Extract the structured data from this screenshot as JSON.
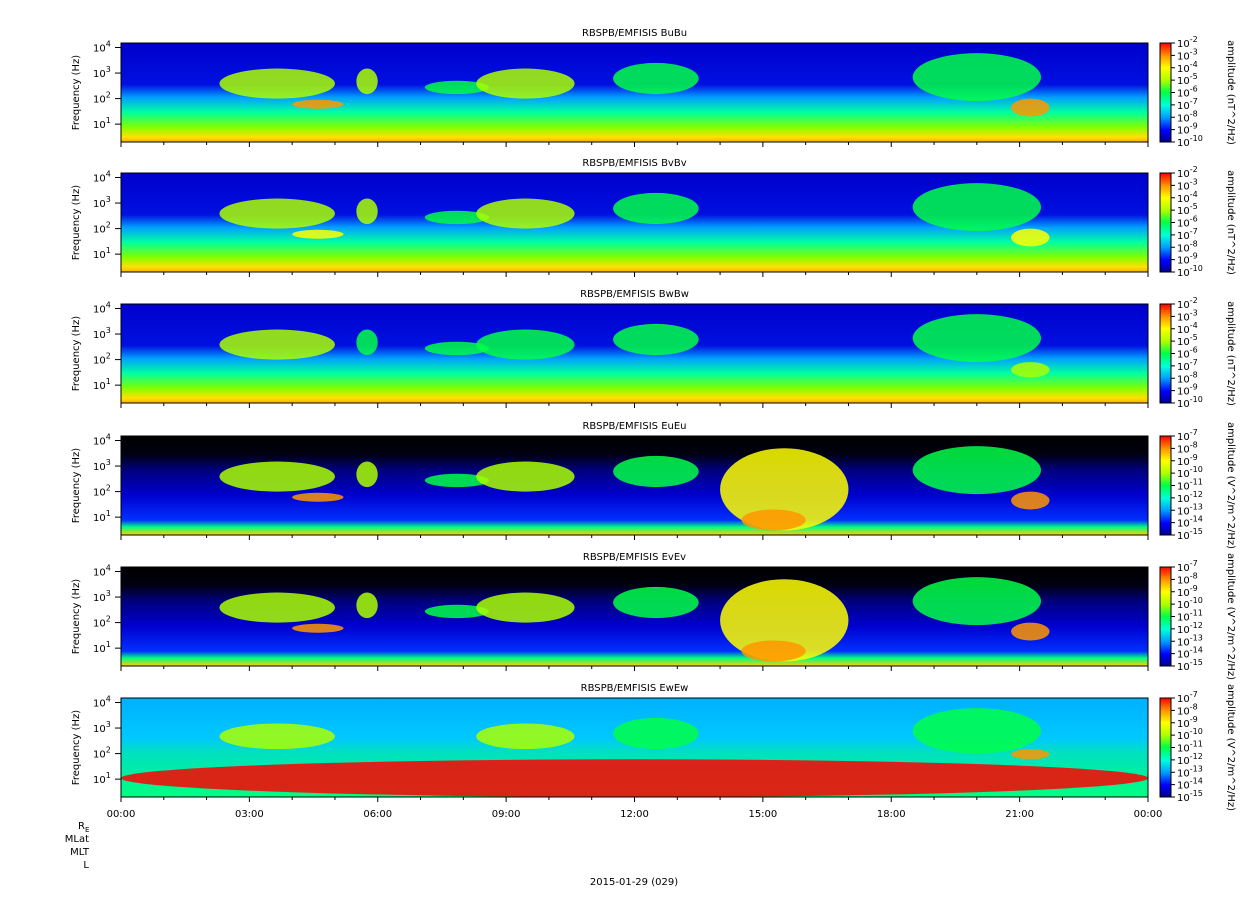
{
  "chart_data": [
    {
      "type": "heatmap",
      "title": "RBSPB/EMFISIS  BuBu",
      "ylabel": "Frequency (Hz)",
      "ylog": true,
      "ylim": [
        2,
        15000
      ],
      "yticks": [
        {
          "value": 10,
          "label": "10",
          "exp": "1"
        },
        {
          "value": 100,
          "label": "10",
          "exp": "2"
        },
        {
          "value": 1000,
          "label": "10",
          "exp": "3"
        },
        {
          "value": 10000,
          "label": "10",
          "exp": "4"
        }
      ],
      "colorbar": {
        "label": "amplitude (nT^2/Hz)",
        "exponents": [
          "-2",
          "-3",
          "-4",
          "-5",
          "-6",
          "-7",
          "-8",
          "-9",
          "-10"
        ],
        "range": [
          -10,
          -2
        ]
      },
      "features": [
        {
          "t": [
            2.3,
            5.0
          ],
          "f": [
            100,
            1500
          ],
          "level": 0.62
        },
        {
          "t": [
            4.0,
            5.2
          ],
          "f": [
            40,
            90
          ],
          "level": 0.82
        },
        {
          "t": [
            5.5,
            6.0
          ],
          "f": [
            150,
            1500
          ],
          "level": 0.6
        },
        {
          "t": [
            7.1,
            8.6
          ],
          "f": [
            150,
            500
          ],
          "level": 0.55
        },
        {
          "t": [
            8.3,
            10.6
          ],
          "f": [
            100,
            1500
          ],
          "level": 0.58
        },
        {
          "t": [
            11.5,
            13.5
          ],
          "f": [
            150,
            2500
          ],
          "level": 0.55
        },
        {
          "t": [
            18.5,
            21.5
          ],
          "f": [
            80,
            6000
          ],
          "level": 0.5
        },
        {
          "t": [
            20.8,
            21.7
          ],
          "f": [
            20,
            100
          ],
          "level": 0.85
        }
      ]
    },
    {
      "type": "heatmap",
      "title": "RBSPB/EMFISIS  BvBv",
      "ylabel": "Frequency (Hz)",
      "ylog": true,
      "ylim": [
        2,
        15000
      ],
      "yticks": [
        {
          "value": 10,
          "label": "10",
          "exp": "1"
        },
        {
          "value": 100,
          "label": "10",
          "exp": "2"
        },
        {
          "value": 1000,
          "label": "10",
          "exp": "3"
        },
        {
          "value": 10000,
          "label": "10",
          "exp": "4"
        }
      ],
      "colorbar": {
        "label": "amplitude (nT^2/Hz)",
        "exponents": [
          "-2",
          "-3",
          "-4",
          "-5",
          "-6",
          "-7",
          "-8",
          "-9",
          "-10"
        ],
        "range": [
          -10,
          -2
        ]
      },
      "features": [
        {
          "t": [
            2.3,
            5.0
          ],
          "f": [
            100,
            1500
          ],
          "level": 0.62
        },
        {
          "t": [
            4.0,
            5.2
          ],
          "f": [
            40,
            90
          ],
          "level": 0.75
        },
        {
          "t": [
            5.5,
            6.0
          ],
          "f": [
            150,
            1500
          ],
          "level": 0.6
        },
        {
          "t": [
            7.1,
            8.6
          ],
          "f": [
            150,
            500
          ],
          "level": 0.55
        },
        {
          "t": [
            8.3,
            10.6
          ],
          "f": [
            100,
            1500
          ],
          "level": 0.58
        },
        {
          "t": [
            11.5,
            13.5
          ],
          "f": [
            150,
            2500
          ],
          "level": 0.55
        },
        {
          "t": [
            18.5,
            21.5
          ],
          "f": [
            80,
            6000
          ],
          "level": 0.5
        },
        {
          "t": [
            20.8,
            21.7
          ],
          "f": [
            20,
            100
          ],
          "level": 0.8
        }
      ]
    },
    {
      "type": "heatmap",
      "title": "RBSPB/EMFISIS  BwBw",
      "ylabel": "Frequency (Hz)",
      "ylog": true,
      "ylim": [
        2,
        15000
      ],
      "yticks": [
        {
          "value": 10,
          "label": "10",
          "exp": "1"
        },
        {
          "value": 100,
          "label": "10",
          "exp": "2"
        },
        {
          "value": 1000,
          "label": "10",
          "exp": "3"
        },
        {
          "value": 10000,
          "label": "10",
          "exp": "4"
        }
      ],
      "colorbar": {
        "label": "amplitude (nT^2/Hz)",
        "exponents": [
          "-2",
          "-3",
          "-4",
          "-5",
          "-6",
          "-7",
          "-8",
          "-9",
          "-10"
        ],
        "range": [
          -10,
          -2
        ]
      },
      "features": [
        {
          "t": [
            2.3,
            5.0
          ],
          "f": [
            100,
            1500
          ],
          "level": 0.6
        },
        {
          "t": [
            5.5,
            6.0
          ],
          "f": [
            150,
            1500
          ],
          "level": 0.55
        },
        {
          "t": [
            7.1,
            8.6
          ],
          "f": [
            150,
            500
          ],
          "level": 0.52
        },
        {
          "t": [
            8.3,
            10.6
          ],
          "f": [
            100,
            1500
          ],
          "level": 0.55
        },
        {
          "t": [
            11.5,
            13.5
          ],
          "f": [
            150,
            2500
          ],
          "level": 0.5
        },
        {
          "t": [
            18.5,
            21.5
          ],
          "f": [
            80,
            6000
          ],
          "level": 0.48
        },
        {
          "t": [
            20.8,
            21.7
          ],
          "f": [
            20,
            80
          ],
          "level": 0.6
        }
      ]
    },
    {
      "type": "heatmap",
      "title": "RBSPB/EMFISIS  EuEu",
      "ylabel": "Frequency (Hz)",
      "ylog": true,
      "ylim": [
        2,
        15000
      ],
      "yticks": [
        {
          "value": 10,
          "label": "10",
          "exp": "1"
        },
        {
          "value": 100,
          "label": "10",
          "exp": "2"
        },
        {
          "value": 1000,
          "label": "10",
          "exp": "3"
        },
        {
          "value": 10000,
          "label": "10",
          "exp": "4"
        }
      ],
      "colorbar": {
        "label": "amplitude (V^2/m^2/Hz)",
        "exponents": [
          "-7",
          "-8",
          "-9",
          "-10",
          "-11",
          "-12",
          "-13",
          "-14",
          "-15"
        ],
        "range": [
          -15,
          -7
        ]
      },
      "features": [
        {
          "t": [
            2.3,
            5.0
          ],
          "f": [
            100,
            1500
          ],
          "level": 0.6
        },
        {
          "t": [
            4.0,
            5.2
          ],
          "f": [
            40,
            90
          ],
          "level": 0.85
        },
        {
          "t": [
            5.5,
            6.0
          ],
          "f": [
            150,
            1500
          ],
          "level": 0.58
        },
        {
          "t": [
            7.1,
            8.6
          ],
          "f": [
            150,
            500
          ],
          "level": 0.55
        },
        {
          "t": [
            8.3,
            10.6
          ],
          "f": [
            100,
            1500
          ],
          "level": 0.58
        },
        {
          "t": [
            11.5,
            13.5
          ],
          "f": [
            150,
            2500
          ],
          "level": 0.55
        },
        {
          "t": [
            14.0,
            17.0
          ],
          "f": [
            3,
            5000
          ],
          "level": 0.72
        },
        {
          "t": [
            14.5,
            16.0
          ],
          "f": [
            3,
            20
          ],
          "level": 0.9
        },
        {
          "t": [
            18.5,
            21.5
          ],
          "f": [
            80,
            6000
          ],
          "level": 0.5
        },
        {
          "t": [
            20.8,
            21.7
          ],
          "f": [
            20,
            100
          ],
          "level": 0.85
        }
      ]
    },
    {
      "type": "heatmap",
      "title": "RBSPB/EMFISIS  EvEv",
      "ylabel": "Frequency (Hz)",
      "ylog": true,
      "ylim": [
        2,
        15000
      ],
      "yticks": [
        {
          "value": 10,
          "label": "10",
          "exp": "1"
        },
        {
          "value": 100,
          "label": "10",
          "exp": "2"
        },
        {
          "value": 1000,
          "label": "10",
          "exp": "3"
        },
        {
          "value": 10000,
          "label": "10",
          "exp": "4"
        }
      ],
      "colorbar": {
        "label": "amplitude (V^2/m^2/Hz)",
        "exponents": [
          "-7",
          "-8",
          "-9",
          "-10",
          "-11",
          "-12",
          "-13",
          "-14",
          "-15"
        ],
        "range": [
          -15,
          -7
        ]
      },
      "features": [
        {
          "t": [
            2.3,
            5.0
          ],
          "f": [
            100,
            1500
          ],
          "level": 0.6
        },
        {
          "t": [
            4.0,
            5.2
          ],
          "f": [
            40,
            90
          ],
          "level": 0.85
        },
        {
          "t": [
            5.5,
            6.0
          ],
          "f": [
            150,
            1500
          ],
          "level": 0.58
        },
        {
          "t": [
            7.1,
            8.6
          ],
          "f": [
            150,
            500
          ],
          "level": 0.55
        },
        {
          "t": [
            8.3,
            10.6
          ],
          "f": [
            100,
            1500
          ],
          "level": 0.58
        },
        {
          "t": [
            11.5,
            13.5
          ],
          "f": [
            150,
            2500
          ],
          "level": 0.55
        },
        {
          "t": [
            14.0,
            17.0
          ],
          "f": [
            3,
            5000
          ],
          "level": 0.72
        },
        {
          "t": [
            14.5,
            16.0
          ],
          "f": [
            3,
            20
          ],
          "level": 0.9
        },
        {
          "t": [
            18.5,
            21.5
          ],
          "f": [
            80,
            6000
          ],
          "level": 0.5
        },
        {
          "t": [
            20.8,
            21.7
          ],
          "f": [
            20,
            100
          ],
          "level": 0.85
        }
      ]
    },
    {
      "type": "heatmap",
      "title": "RBSPB/EMFISIS  EwEw",
      "ylabel": "Frequency (Hz)",
      "ylog": true,
      "ylim": [
        2,
        15000
      ],
      "yticks": [
        {
          "value": 10,
          "label": "10",
          "exp": "1"
        },
        {
          "value": 100,
          "label": "10",
          "exp": "2"
        },
        {
          "value": 1000,
          "label": "10",
          "exp": "3"
        },
        {
          "value": 10000,
          "label": "10",
          "exp": "4"
        }
      ],
      "colorbar": {
        "label": "amplitude (V^2/m^2/Hz)",
        "exponents": [
          "-7",
          "-8",
          "-9",
          "-10",
          "-11",
          "-12",
          "-13",
          "-14",
          "-15"
        ],
        "range": [
          -15,
          -7
        ]
      },
      "features": [
        {
          "t": [
            0.0,
            24.0
          ],
          "f": [
            2,
            60
          ],
          "level": 0.95
        },
        {
          "t": [
            2.3,
            5.0
          ],
          "f": [
            150,
            1500
          ],
          "level": 0.6
        },
        {
          "t": [
            8.3,
            10.6
          ],
          "f": [
            150,
            1500
          ],
          "level": 0.58
        },
        {
          "t": [
            11.5,
            13.5
          ],
          "f": [
            150,
            2500
          ],
          "level": 0.55
        },
        {
          "t": [
            18.5,
            21.5
          ],
          "f": [
            100,
            6000
          ],
          "level": 0.5
        },
        {
          "t": [
            20.8,
            21.7
          ],
          "f": [
            60,
            150
          ],
          "level": 0.85
        }
      ]
    }
  ],
  "xaxis": {
    "xlim": [
      "00:00",
      "24:00"
    ],
    "ticks": [
      {
        "hour": 0,
        "label": "00:00"
      },
      {
        "hour": 3,
        "label": "03:00"
      },
      {
        "hour": 6,
        "label": "06:00"
      },
      {
        "hour": 9,
        "label": "09:00"
      },
      {
        "hour": 12,
        "label": "12:00"
      },
      {
        "hour": 15,
        "label": "15:00"
      },
      {
        "hour": 18,
        "label": "18:00"
      },
      {
        "hour": 21,
        "label": "21:00"
      },
      {
        "hour": 24,
        "label": "00:00"
      }
    ]
  },
  "ephemeris_labels": {
    "re": "R",
    "re_sub": "E",
    "mlat": "MLat",
    "mlt": "MLT",
    "l": "L"
  },
  "date_label": "2015-01-29 (029)",
  "colors": {
    "background_b": "#0000cc",
    "background_e": "#000000",
    "colormap": [
      "#00008f",
      "#0000ff",
      "#00a0ff",
      "#00ffdc",
      "#00ff46",
      "#aaff00",
      "#ffff00",
      "#ff9600",
      "#ff0000"
    ]
  }
}
